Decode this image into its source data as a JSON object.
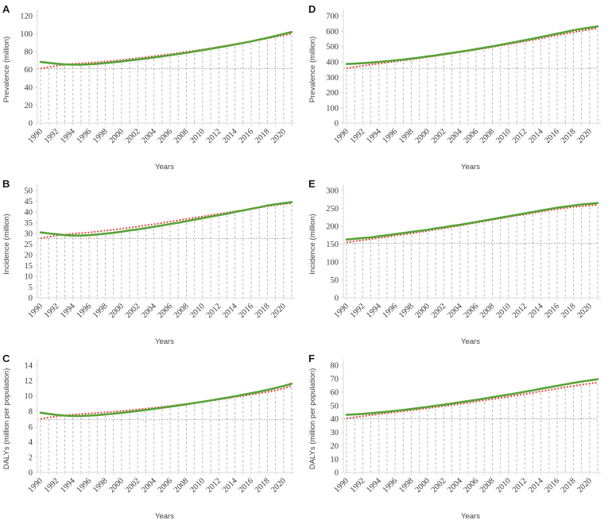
{
  "figure_title": "",
  "chart_data": {
    "type": "line",
    "x_axis_label": "Years",
    "legend": "none",
    "grid": "vertical dashed drop lines per year; dotted horizontal baseline at 1990 trend value",
    "colors": {
      "green_series": "#57a338",
      "red_series": "#e8382a",
      "drop_line": "#b2b2b2",
      "ref_line": "#8c8c8c",
      "axis": "#d9d9d9",
      "tick_text": "#3a3a3a"
    },
    "years": [
      1990,
      1991,
      1992,
      1993,
      1994,
      1995,
      1996,
      1997,
      1998,
      1999,
      2000,
      2001,
      2002,
      2003,
      2004,
      2005,
      2006,
      2007,
      2008,
      2009,
      2010,
      2011,
      2012,
      2013,
      2014,
      2015,
      2016,
      2017,
      2018,
      2019,
      2020,
      2021
    ],
    "x_tick_labels": [
      "1990",
      "1992",
      "1994",
      "1996",
      "1998",
      "2000",
      "2002",
      "2004",
      "2006",
      "2008",
      "2010",
      "2012",
      "2014",
      "2016",
      "2018",
      "2020"
    ],
    "panels": [
      {
        "panel": "A",
        "ylabel": "Prevalence (million)",
        "ylim": [
          0,
          120
        ],
        "y_ticks": [
          0,
          20,
          40,
          60,
          80,
          100,
          120
        ],
        "ref_line_y": 61,
        "series": [
          {
            "name": "observed-green-solid",
            "values": [
              68.5,
              67.4,
              66.4,
              65.7,
              65.3,
              65.4,
              65.8,
              66.4,
              67.2,
              68.1,
              69.1,
              70.1,
              71.2,
              72.3,
              73.5,
              74.7,
              76.0,
              77.3,
              78.7,
              80.1,
              81.6,
              83.1,
              84.7,
              86.3,
              88.0,
              89.7,
              91.5,
              93.4,
              95.4,
              97.5,
              99.8,
              102.0
            ]
          },
          {
            "name": "trend-red-dotted",
            "values": [
              61.0,
              62.6,
              64.1,
              65.4,
              66.3,
              66.9,
              67.5,
              68.1,
              68.9,
              69.7,
              70.6,
              71.6,
              72.6,
              73.7,
              74.8,
              76.0,
              77.2,
              78.4,
              79.7,
              81.0,
              82.4,
              83.8,
              85.3,
              86.8,
              88.3,
              89.9,
              91.5,
              93.1,
              94.8,
              96.5,
              98.2,
              100.0
            ]
          }
        ]
      },
      {
        "panel": "B",
        "ylabel": "Incidence (million)",
        "ylim": [
          0,
          50
        ],
        "y_ticks": [
          0,
          5,
          10,
          15,
          20,
          25,
          30,
          35,
          40,
          45,
          50
        ],
        "ref_line_y": 27.6,
        "series": [
          {
            "name": "observed-green-solid",
            "values": [
              30.5,
              30.0,
              29.6,
              29.2,
              29.0,
              29.0,
              29.2,
              29.5,
              29.9,
              30.3,
              30.8,
              31.4,
              31.9,
              32.5,
              33.1,
              33.7,
              34.4,
              35.0,
              35.7,
              36.4,
              37.1,
              37.8,
              38.5,
              39.2,
              40.0,
              40.7,
              41.5,
              42.2,
              43.0,
              43.6,
              44.1,
              44.6
            ]
          },
          {
            "name": "trend-red-dotted",
            "values": [
              27.7,
              28.4,
              29.0,
              29.5,
              29.9,
              30.2,
              30.5,
              30.9,
              31.3,
              31.7,
              32.2,
              32.7,
              33.2,
              33.8,
              34.3,
              34.9,
              35.5,
              36.1,
              36.7,
              37.3,
              37.9,
              38.5,
              39.1,
              39.7,
              40.3,
              40.9,
              41.5,
              42.1,
              42.7,
              43.2,
              43.7,
              44.1
            ]
          }
        ]
      },
      {
        "panel": "C",
        "ylabel": "DALYs (million per population)",
        "ylim": [
          0,
          14
        ],
        "y_ticks": [
          0,
          2,
          4,
          6,
          8,
          10,
          12,
          14
        ],
        "ref_line_y": 6.9,
        "series": [
          {
            "name": "observed-green-solid",
            "values": [
              7.8,
              7.64,
              7.51,
              7.42,
              7.36,
              7.37,
              7.41,
              7.48,
              7.57,
              7.67,
              7.78,
              7.9,
              8.03,
              8.16,
              8.3,
              8.44,
              8.59,
              8.74,
              8.9,
              9.06,
              9.23,
              9.4,
              9.58,
              9.76,
              9.95,
              10.14,
              10.34,
              10.55,
              10.77,
              11.01,
              11.28,
              11.58
            ]
          },
          {
            "name": "trend-red-dotted",
            "values": [
              7.0,
              7.17,
              7.32,
              7.45,
              7.55,
              7.63,
              7.7,
              7.77,
              7.85,
              7.93,
              8.02,
              8.12,
              8.22,
              8.33,
              8.44,
              8.56,
              8.68,
              8.81,
              8.94,
              9.08,
              9.22,
              9.37,
              9.52,
              9.67,
              9.83,
              9.99,
              10.16,
              10.33,
              10.51,
              10.7,
              10.95,
              11.3
            ]
          }
        ]
      },
      {
        "panel": "D",
        "ylabel": "Prevalence (million)",
        "ylim": [
          0,
          700
        ],
        "y_ticks": [
          0,
          100,
          200,
          300,
          400,
          500,
          600,
          700
        ],
        "ref_line_y": 357,
        "series": [
          {
            "name": "observed-green-solid",
            "values": [
              386,
              388,
              391,
              395,
              399,
              404,
              409,
              415,
              421,
              428,
              435,
              442,
              450,
              458,
              466,
              474,
              483,
              492,
              501,
              511,
              521,
              531,
              541,
              551,
              562,
              573,
              584,
              595,
              606,
              615,
              623,
              631
            ]
          },
          {
            "name": "trend-red-dotted",
            "values": [
              358,
              366,
              374,
              381,
              388,
              395,
              402,
              409,
              416,
              423,
              431,
              439,
              447,
              455,
              463,
              471,
              479,
              488,
              497,
              506,
              515,
              524,
              533,
              543,
              553,
              563,
              573,
              583,
              593,
              602,
              611,
              620
            ]
          }
        ]
      },
      {
        "panel": "E",
        "ylabel": "Incidence (million)",
        "ylim": [
          0,
          300
        ],
        "y_ticks": [
          0,
          50,
          100,
          150,
          200,
          250,
          300
        ],
        "ref_line_y": 152,
        "series": [
          {
            "name": "observed-green-solid",
            "values": [
              163,
              165,
              167,
              169,
              172,
              175,
              178,
              181,
              184,
              187,
              190,
              194,
              197,
              201,
              204,
              208,
              212,
              216,
              220,
              224,
              228,
              232,
              236,
              240,
              244,
              248,
              252,
              255,
              258,
              261,
              263,
              265
            ]
          },
          {
            "name": "trend-red-dotted",
            "values": [
              155,
              158,
              161,
              164,
              167,
              170,
              174,
              177,
              180,
              184,
              187,
              191,
              194,
              198,
              202,
              206,
              210,
              214,
              218,
              222,
              226,
              230,
              233,
              237,
              241,
              245,
              248,
              251,
              254,
              256,
              258,
              260
            ]
          }
        ]
      },
      {
        "panel": "F",
        "ylabel": "DALYs (million per population)",
        "ylim": [
          0,
          80
        ],
        "y_ticks": [
          0,
          10,
          20,
          30,
          40,
          50,
          60,
          70,
          80
        ],
        "ref_line_y": 40,
        "series": [
          {
            "name": "observed-green-solid",
            "values": [
              43.0,
              43.3,
              43.7,
              44.2,
              44.7,
              45.3,
              45.9,
              46.6,
              47.3,
              48.1,
              48.9,
              49.7,
              50.5,
              51.4,
              52.3,
              53.2,
              54.1,
              55.1,
              56.1,
              57.1,
              58.1,
              59.1,
              60.2,
              61.3,
              62.4,
              63.5,
              64.6,
              65.7,
              66.8,
              67.8,
              68.7,
              69.5
            ]
          },
          {
            "name": "trend-red-dotted",
            "values": [
              40.3,
              41.1,
              41.9,
              42.7,
              43.5,
              44.2,
              44.9,
              45.6,
              46.3,
              47.1,
              47.9,
              48.7,
              49.5,
              50.3,
              51.1,
              52.0,
              52.9,
              53.8,
              54.7,
              55.6,
              56.5,
              57.5,
              58.5,
              59.5,
              60.5,
              61.5,
              62.5,
              63.5,
              64.5,
              65.4,
              66.3,
              67.2
            ]
          }
        ]
      }
    ]
  }
}
